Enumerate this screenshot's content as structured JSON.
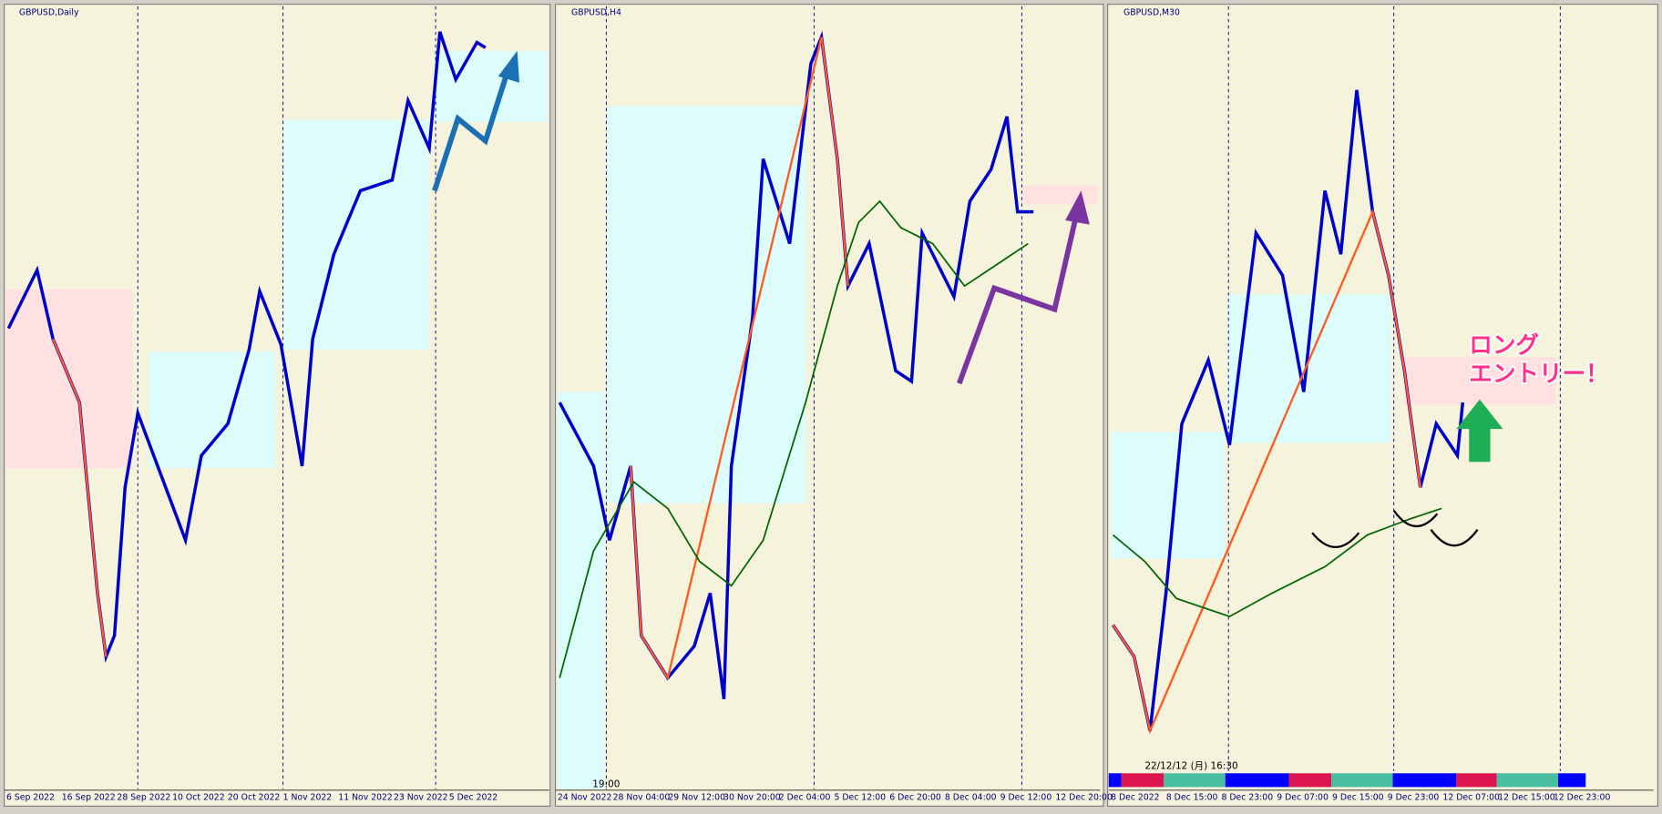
{
  "panels": [
    {
      "title": "GBPUSD,Daily",
      "x_labels": [
        "6 Sep 2022",
        "16 Sep 2022",
        "28 Sep 2022",
        "10 Oct 2022",
        "20 Oct 2022",
        "1 Nov 2022",
        "11 Nov 2022",
        "23 Nov 2022",
        "5 Dec 2022"
      ]
    },
    {
      "title": "GBPUSD,H4",
      "x_labels": [
        "24 Nov 2022",
        "28 Nov 04:00",
        "29 Nov 12:00",
        "30 Nov 20:00",
        "2 Dec 04:00",
        "5 Dec 12:00",
        "6 Dec 20:00",
        "8 Dec 04:00",
        "9 Dec 12:00",
        "12 Dec 20:00"
      ],
      "time_label": "19:00"
    },
    {
      "title": "GBPUSD,M30",
      "x_labels": [
        "8 Dec 2022",
        "8 Dec 15:00",
        "8 Dec 23:00",
        "9 Dec 07:00",
        "9 Dec 15:00",
        "9 Dec 23:00",
        "12 Dec 07:00",
        "12 Dec 15:00",
        "12 Dec 23:00"
      ],
      "time_label": "22/12/12 (月) 16:30"
    }
  ],
  "annotation": {
    "line1": "ロング",
    "line2": "エントリー！"
  }
}
